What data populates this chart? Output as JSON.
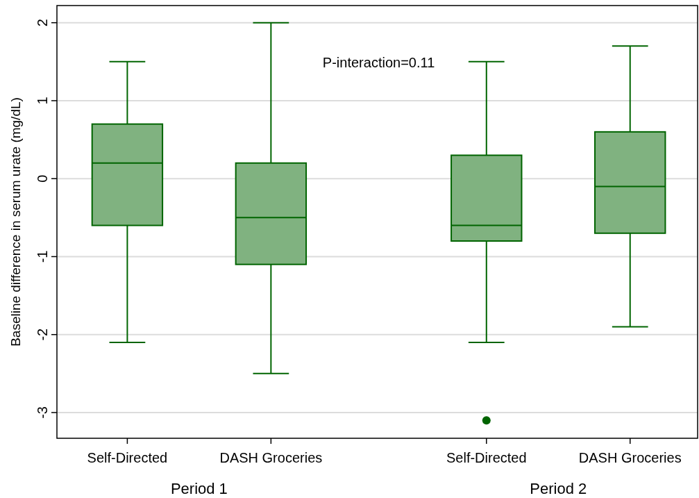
{
  "chart_data": {
    "type": "box",
    "ylabel": "Baseline difference in serum urate (mg/dL)",
    "categories": [
      "Self-Directed",
      "DASH Groceries",
      "Self-Directed",
      "DASH Groceries"
    ],
    "color": "#80b280",
    "ylim": [
      -3.33,
      2.22
    ],
    "yticks": [
      -3,
      -2,
      -1,
      0,
      1,
      2
    ],
    "grid": "y",
    "boxes": [
      {
        "low": -2.1,
        "q1": -0.6,
        "median": 0.2,
        "q3": 0.7,
        "high": 1.5
      },
      {
        "low": -2.5,
        "q1": -1.1,
        "median": -0.5,
        "q3": 0.2,
        "high": 2.0
      },
      {
        "low": -2.1,
        "q1": -0.8,
        "median": -0.6,
        "q3": 0.3,
        "high": 1.5,
        "outliers": [
          -3.1
        ]
      },
      {
        "low": -1.9,
        "q1": -0.7,
        "median": -0.1,
        "q3": 0.6,
        "high": 1.7
      }
    ],
    "annotations": [
      "P-interaction=0.11",
      "Period 1",
      "Period 2"
    ]
  }
}
